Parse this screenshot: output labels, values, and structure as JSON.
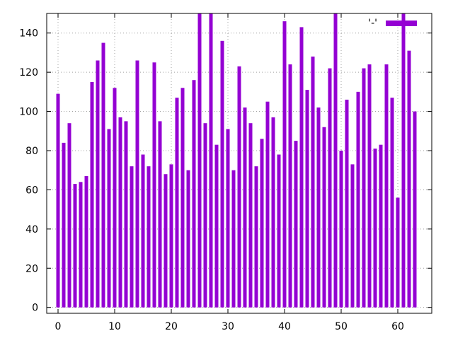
{
  "chart_data": {
    "type": "bar",
    "title": "",
    "xlabel": "",
    "ylabel": "",
    "xlim": [
      -2,
      66
    ],
    "ylim": [
      -3,
      150
    ],
    "x_ticks": [
      0,
      10,
      20,
      30,
      40,
      50,
      60
    ],
    "y_ticks": [
      0,
      20,
      40,
      60,
      80,
      100,
      120,
      140
    ],
    "grid": true,
    "legend": {
      "position": "top-right",
      "label": "'-'"
    },
    "bar_color": "#9400d3",
    "series": [
      {
        "x": [
          0,
          1,
          2,
          3,
          4,
          5,
          6,
          7,
          8,
          9,
          10,
          11,
          12,
          13,
          14,
          15,
          16,
          17,
          18,
          19,
          20,
          21,
          22,
          23,
          24,
          25,
          26,
          27,
          28,
          29,
          30,
          31,
          32,
          33,
          34,
          35,
          36,
          37,
          38,
          39,
          40,
          41,
          42,
          43,
          44,
          45,
          46,
          47,
          48,
          49,
          50,
          51,
          52,
          53,
          54,
          55,
          56,
          57,
          58,
          59,
          60,
          61,
          62,
          63
        ],
        "values": [
          109,
          84,
          94,
          63,
          64,
          67,
          115,
          126,
          135,
          91,
          112,
          97,
          95,
          72,
          126,
          78,
          72,
          125,
          95,
          68,
          73,
          107,
          112,
          70,
          116,
          150,
          94,
          150,
          83,
          136,
          91,
          70,
          123,
          102,
          94,
          72,
          86,
          105,
          97,
          78,
          146,
          124,
          85,
          143,
          111,
          128,
          102,
          92,
          122,
          150,
          80,
          106,
          73,
          110,
          122,
          124,
          81,
          83,
          124,
          107,
          56,
          150,
          131,
          100
        ]
      }
    ]
  }
}
